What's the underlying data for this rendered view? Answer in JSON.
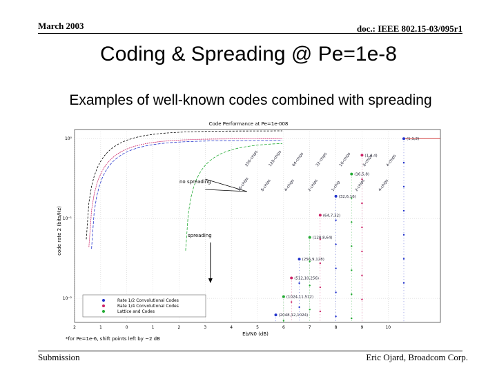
{
  "header": {
    "date": "March 2003",
    "doc": "doc.: IEEE 802.15-03/095r1"
  },
  "title": "Coding & Spreading @ Pe=1e-8",
  "subtitle": "Examples of well-known codes combined with spreading",
  "footer": {
    "left": "Submission",
    "right": "Eric Ojard, Broadcom Corp."
  },
  "chart_data": {
    "type": "scatter",
    "title": "Code Performance at Pe=1e-008",
    "xlabel": "Eb/N0 (dB)",
    "ylabel": "code rate 2 (bits/Hz)",
    "xticks": [
      "2",
      "1",
      "0",
      "1",
      "2",
      "3",
      "4",
      "5",
      "6",
      "7",
      "8",
      "9",
      "10"
    ],
    "yticks": [
      "10⁰",
      "10⁻¹",
      "10⁻²"
    ],
    "xlim": [
      -2,
      12
    ],
    "ylog": true,
    "ylim": [
      0.005,
      1.3
    ],
    "grid": true,
    "legend": [
      "Rate 1/2 Convolutional Codes",
      "Rate 1/4 Convolutional Codes",
      "Lattice and Codes"
    ],
    "legend_position": "bottom-left",
    "colors": {
      "rate_half": "#2233cc",
      "rate_quarter": "#cc2266",
      "lattice": "#22aa33",
      "uncoded": "#cc2222"
    },
    "annotations": {
      "no_spreading": "no spreading",
      "spreading": "spreading",
      "note": "*for Pe=1e-6, shift points left by ~2 dB"
    },
    "spreading_labels_top": [
      "256-chips",
      "128-chips",
      "64-chips",
      "32-chips",
      "16-chips",
      "8-chips",
      "4-chips"
    ],
    "spreading_labels_low": [
      "16-chips",
      "8-chips",
      "4-chips",
      "2-chips",
      "1-chip",
      "2-chips",
      "4-chips"
    ],
    "codes": [
      {
        "label": "(1,1,2)",
        "x": 10.6,
        "y": 1.0
      },
      {
        "label": "(1,4,4)",
        "x": 9.0,
        "y": 0.62
      },
      {
        "label": "(16,5,8)",
        "x": 8.6,
        "y": 0.36
      },
      {
        "label": "(32,6,16)",
        "x": 8.0,
        "y": 0.19
      },
      {
        "label": "(64,7,32)",
        "x": 7.4,
        "y": 0.11
      },
      {
        "label": "(128,8,64)",
        "x": 7.0,
        "y": 0.058
      },
      {
        "label": "(256,9,128)",
        "x": 6.6,
        "y": 0.031
      },
      {
        "label": "(512,10,256)",
        "x": 6.3,
        "y": 0.018
      },
      {
        "label": "(1024,11,512)",
        "x": 6.0,
        "y": 0.0105
      },
      {
        "label": "(2048,12,1024)",
        "x": 5.7,
        "y": 0.0062
      }
    ]
  }
}
